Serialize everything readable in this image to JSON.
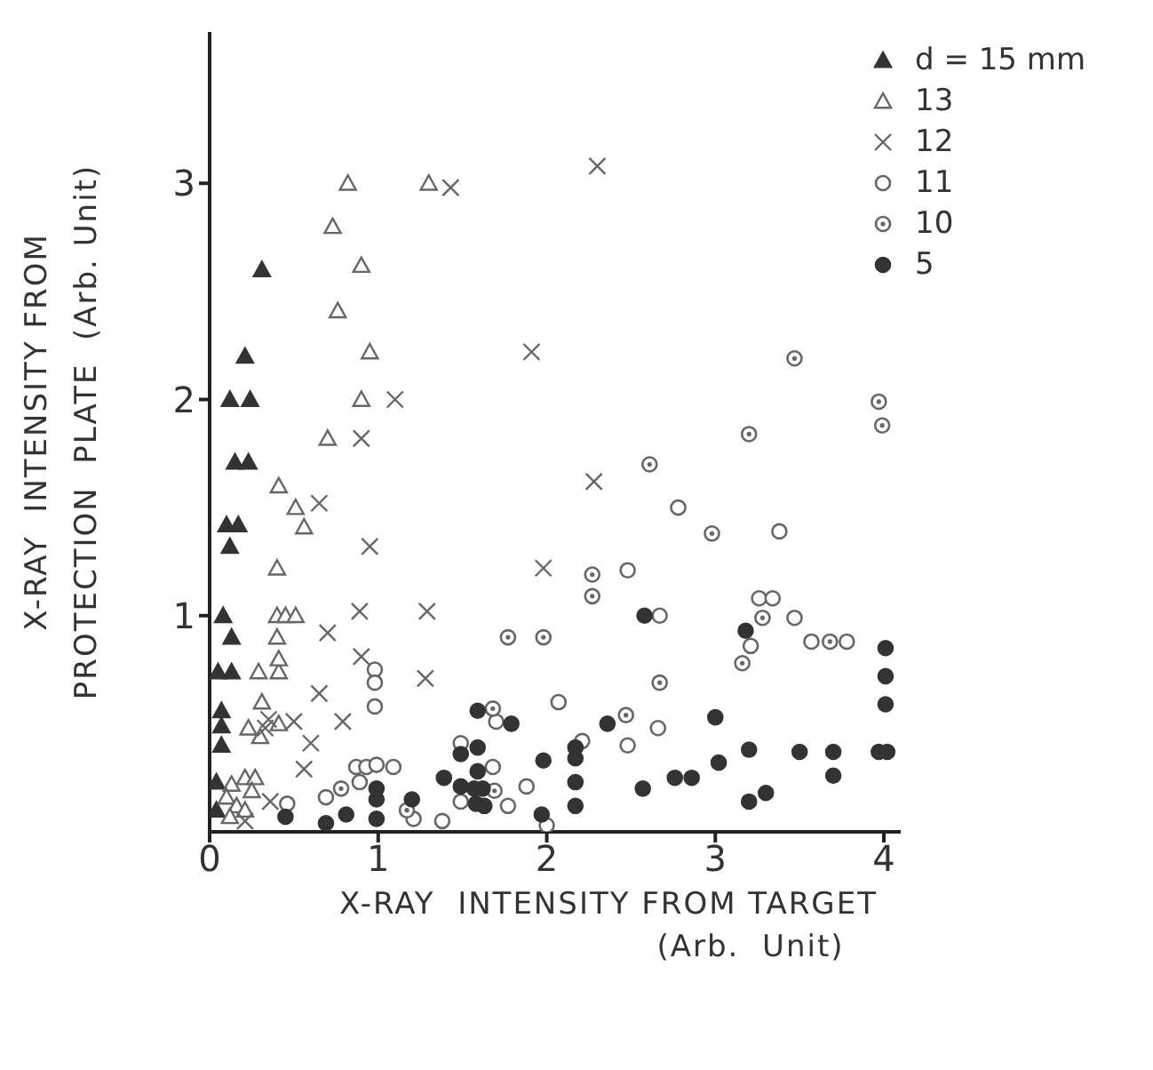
{
  "chart_data": {
    "type": "scatter",
    "xlabel": "X-RAY  INTENSITY FROM TARGET\n(Arb.  Unit)",
    "ylabel": "X-RAY  INTENSITY FROM\nPROTECTION  PLATE  (Arb. Unit)",
    "xlim": [
      0,
      4.1
    ],
    "ylim": [
      0,
      3.7
    ],
    "xticks": [
      0,
      1,
      2,
      3,
      4
    ],
    "yticks": [
      1,
      2,
      3
    ],
    "grid": false,
    "legend": "top right",
    "series": [
      {
        "name": "d = 15 mm",
        "color": "#333333",
        "marker": "triangle",
        "x": [
          0.31,
          0.21,
          0.12,
          0.24,
          0.15,
          0.23,
          0.1,
          0.17,
          0.12,
          0.08,
          0.13,
          0.05,
          0.13,
          0.07,
          0.07,
          0.07,
          0.04,
          0.04
        ],
        "values": [
          2.6,
          2.2,
          2.0,
          2.0,
          1.71,
          1.71,
          1.42,
          1.42,
          1.32,
          1.0,
          0.9,
          0.74,
          0.74,
          0.56,
          0.49,
          0.4,
          0.23,
          0.1
        ]
      },
      {
        "name": "13",
        "color": "#666666",
        "marker": "triangle",
        "x": [
          0.82,
          1.3,
          0.73,
          0.9,
          0.76,
          0.95,
          0.9,
          0.7,
          0.41,
          0.51,
          0.56,
          0.4,
          0.4,
          0.45,
          0.51,
          0.4,
          0.29,
          0.41,
          0.41,
          0.31,
          0.23,
          0.3,
          0.41,
          0.13,
          0.21,
          0.27,
          0.25,
          0.1,
          0.16,
          0.21,
          0.12
        ],
        "values": [
          3.0,
          3.0,
          2.8,
          2.62,
          2.41,
          2.22,
          2.0,
          1.82,
          1.6,
          1.5,
          1.41,
          1.22,
          1.0,
          1.0,
          1.0,
          0.9,
          0.74,
          0.74,
          0.8,
          0.6,
          0.48,
          0.44,
          0.5,
          0.22,
          0.25,
          0.25,
          0.19,
          0.16,
          0.12,
          0.1,
          0.07
        ]
      },
      {
        "name": "12",
        "color": "#666666",
        "marker": "cross",
        "x": [
          1.43,
          2.3,
          1.1,
          0.9,
          0.65,
          0.95,
          0.89,
          0.7,
          0.9,
          0.65,
          0.35,
          0.33,
          0.5,
          0.79,
          0.6,
          0.56,
          0.36,
          0.21,
          1.91,
          2.28,
          1.98,
          1.29,
          1.28
        ],
        "values": [
          2.98,
          3.08,
          2.0,
          1.82,
          1.52,
          1.32,
          1.02,
          0.92,
          0.81,
          0.64,
          0.52,
          0.48,
          0.51,
          0.51,
          0.41,
          0.29,
          0.14,
          0.05,
          2.22,
          1.62,
          1.22,
          1.02,
          0.71
        ]
      },
      {
        "name": "11",
        "color": "#666666",
        "marker": "circle",
        "x": [
          0.98,
          0.98,
          0.98,
          0.87,
          0.93,
          0.99,
          1.09,
          0.89,
          0.69,
          0.46,
          1.21,
          2.48,
          2.67,
          2.07,
          1.7,
          2.66,
          1.49,
          2.21,
          2.48,
          1.68,
          1.88,
          1.49,
          1.77,
          1.38,
          2.0,
          2.78,
          3.38,
          3.26,
          3.34,
          3.47,
          3.21,
          3.57,
          3.78
        ],
        "values": [
          0.75,
          0.69,
          0.58,
          0.3,
          0.3,
          0.31,
          0.3,
          0.23,
          0.16,
          0.13,
          0.06,
          1.21,
          1.0,
          0.6,
          0.51,
          0.48,
          0.41,
          0.42,
          0.4,
          0.3,
          0.21,
          0.14,
          0.12,
          0.05,
          0.03,
          1.5,
          1.39,
          1.08,
          1.08,
          0.99,
          0.86,
          0.88,
          0.88
        ]
      },
      {
        "name": "10",
        "color": "#666666",
        "marker": "circle",
        "x": [
          0.78,
          1.17,
          2.61,
          2.27,
          2.27,
          1.77,
          1.98,
          2.67,
          1.68,
          2.47,
          1.69,
          3.47,
          3.97,
          3.99,
          3.2,
          2.98,
          3.28,
          3.16,
          3.68
        ],
        "values": [
          0.2,
          0.1,
          1.7,
          1.19,
          1.09,
          0.9,
          0.9,
          0.69,
          0.57,
          0.54,
          0.19,
          2.19,
          1.99,
          1.88,
          1.84,
          1.38,
          0.99,
          0.78,
          0.88
        ]
      },
      {
        "name": "5",
        "color": "#333333",
        "marker": "circle",
        "x": [
          0.45,
          0.69,
          0.81,
          0.99,
          0.99,
          0.99,
          1.2,
          2.58,
          1.59,
          1.79,
          2.36,
          1.49,
          1.59,
          2.17,
          2.17,
          1.98,
          1.59,
          1.39,
          1.49,
          1.57,
          1.62,
          2.17,
          2.57,
          1.58,
          1.63,
          2.17,
          1.97,
          3.18,
          4.01,
          4.01,
          4.01,
          3.0,
          3.02,
          3.2,
          3.5,
          3.7,
          3.7,
          3.97,
          4.02,
          2.76,
          2.86,
          3.2,
          3.3
        ],
        "values": [
          0.07,
          0.04,
          0.08,
          0.2,
          0.15,
          0.06,
          0.15,
          1.0,
          0.56,
          0.5,
          0.5,
          0.36,
          0.39,
          0.39,
          0.34,
          0.33,
          0.28,
          0.25,
          0.21,
          0.2,
          0.2,
          0.23,
          0.2,
          0.13,
          0.12,
          0.12,
          0.08,
          0.93,
          0.85,
          0.72,
          0.59,
          0.53,
          0.32,
          0.38,
          0.37,
          0.37,
          0.26,
          0.37,
          0.37,
          0.25,
          0.25,
          0.14,
          0.18
        ]
      }
    ]
  }
}
